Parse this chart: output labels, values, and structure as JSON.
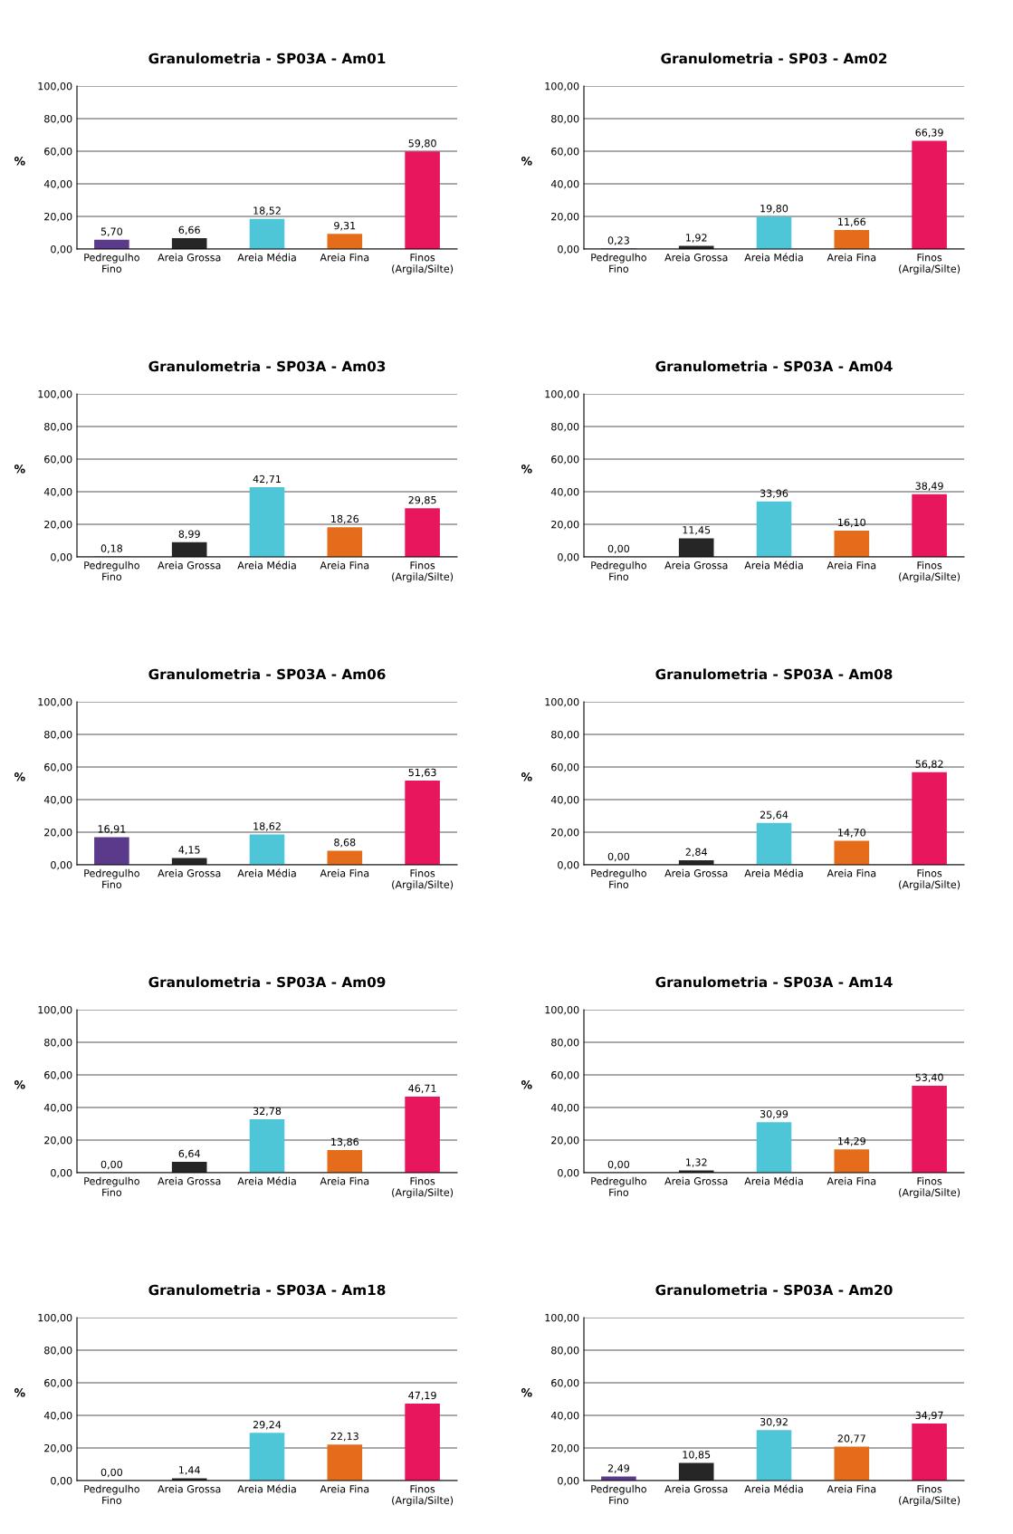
{
  "chart_data": [
    {
      "type": "bar",
      "title": "Granulometria - SP03A - Am01",
      "ylabel": "%",
      "categories": [
        "Pedregulho\nFino",
        "Areia Grossa",
        "Areia Média",
        "Areia Fina",
        "Finos\n(Argila/Silte)"
      ],
      "values": [
        5.7,
        6.66,
        18.52,
        9.31,
        59.8
      ],
      "value_labels": [
        "5,70",
        "6,66",
        "18,52",
        "9,31",
        "59,80"
      ],
      "colors": [
        "#5b3a8c",
        "#262626",
        "#4fc6d8",
        "#e46c1a",
        "#e8175d"
      ],
      "ylim": [
        0,
        100
      ],
      "yticks": [
        {
          "value": 0,
          "label": "0,00"
        },
        {
          "value": 20,
          "label": "20,00"
        },
        {
          "value": 40,
          "label": "40,00"
        },
        {
          "value": 60,
          "label": "60,00"
        },
        {
          "value": 80,
          "label": "80,00"
        },
        {
          "value": 100,
          "label": "100,00"
        }
      ],
      "grid": "y"
    },
    {
      "type": "bar",
      "title": "Granulometria - SP03 - Am02",
      "ylabel": "%",
      "categories": [
        "Pedregulho\nFino",
        "Areia Grossa",
        "Areia Média",
        "Areia Fina",
        "Finos\n(Argila/Silte)"
      ],
      "values": [
        0.23,
        1.92,
        19.8,
        11.66,
        66.39
      ],
      "value_labels": [
        "0,23",
        "1,92",
        "19,80",
        "11,66",
        "66,39"
      ],
      "colors": [
        "#5b3a8c",
        "#262626",
        "#4fc6d8",
        "#e46c1a",
        "#e8175d"
      ],
      "ylim": [
        0,
        100
      ],
      "yticks": [
        {
          "value": 0,
          "label": "0,00"
        },
        {
          "value": 20,
          "label": "20,00"
        },
        {
          "value": 40,
          "label": "40,00"
        },
        {
          "value": 60,
          "label": "60,00"
        },
        {
          "value": 80,
          "label": "80,00"
        },
        {
          "value": 100,
          "label": "100,00"
        }
      ],
      "grid": "y"
    },
    {
      "type": "bar",
      "title": "Granulometria - SP03A - Am03",
      "ylabel": "%",
      "categories": [
        "Pedregulho\nFino",
        "Areia Grossa",
        "Areia Média",
        "Areia Fina",
        "Finos\n(Argila/Silte)"
      ],
      "values": [
        0.18,
        8.99,
        42.71,
        18.26,
        29.85
      ],
      "value_labels": [
        "0,18",
        "8,99",
        "42,71",
        "18,26",
        "29,85"
      ],
      "colors": [
        "#5b3a8c",
        "#262626",
        "#4fc6d8",
        "#e46c1a",
        "#e8175d"
      ],
      "ylim": [
        0,
        100
      ],
      "yticks": [
        {
          "value": 0,
          "label": "0,00"
        },
        {
          "value": 20,
          "label": "20,00"
        },
        {
          "value": 40,
          "label": "40,00"
        },
        {
          "value": 60,
          "label": "60,00"
        },
        {
          "value": 80,
          "label": "80,00"
        },
        {
          "value": 100,
          "label": "100,00"
        }
      ],
      "grid": "y"
    },
    {
      "type": "bar",
      "title": "Granulometria - SP03A - Am04",
      "ylabel": "%",
      "categories": [
        "Pedregulho\nFino",
        "Areia Grossa",
        "Areia Média",
        "Areia Fina",
        "Finos\n(Argila/Silte)"
      ],
      "values": [
        0.0,
        11.45,
        33.96,
        16.1,
        38.49
      ],
      "value_labels": [
        "0,00",
        "11,45",
        "33,96",
        "16,10",
        "38,49"
      ],
      "colors": [
        "#5b3a8c",
        "#262626",
        "#4fc6d8",
        "#e46c1a",
        "#e8175d"
      ],
      "ylim": [
        0,
        100
      ],
      "yticks": [
        {
          "value": 0,
          "label": "0,00"
        },
        {
          "value": 20,
          "label": "20,00"
        },
        {
          "value": 40,
          "label": "40,00"
        },
        {
          "value": 60,
          "label": "60,00"
        },
        {
          "value": 80,
          "label": "80,00"
        },
        {
          "value": 100,
          "label": "100,00"
        }
      ],
      "grid": "y"
    },
    {
      "type": "bar",
      "title": "Granulometria - SP03A - Am06",
      "ylabel": "%",
      "categories": [
        "Pedregulho\nFino",
        "Areia Grossa",
        "Areia Média",
        "Areia Fina",
        "Finos\n(Argila/Silte)"
      ],
      "values": [
        16.91,
        4.15,
        18.62,
        8.68,
        51.63
      ],
      "value_labels": [
        "16,91",
        "4,15",
        "18,62",
        "8,68",
        "51,63"
      ],
      "colors": [
        "#5b3a8c",
        "#262626",
        "#4fc6d8",
        "#e46c1a",
        "#e8175d"
      ],
      "ylim": [
        0,
        100
      ],
      "yticks": [
        {
          "value": 0,
          "label": "0,00"
        },
        {
          "value": 20,
          "label": "20,00"
        },
        {
          "value": 40,
          "label": "40,00"
        },
        {
          "value": 60,
          "label": "60,00"
        },
        {
          "value": 80,
          "label": "80,00"
        },
        {
          "value": 100,
          "label": "100,00"
        }
      ],
      "grid": "y"
    },
    {
      "type": "bar",
      "title": "Granulometria - SP03A - Am08",
      "ylabel": "%",
      "categories": [
        "Pedregulho\nFino",
        "Areia Grossa",
        "Areia Média",
        "Areia Fina",
        "Finos\n(Argila/Silte)"
      ],
      "values": [
        0.0,
        2.84,
        25.64,
        14.7,
        56.82
      ],
      "value_labels": [
        "0,00",
        "2,84",
        "25,64",
        "14,70",
        "56,82"
      ],
      "colors": [
        "#5b3a8c",
        "#262626",
        "#4fc6d8",
        "#e46c1a",
        "#e8175d"
      ],
      "ylim": [
        0,
        100
      ],
      "yticks": [
        {
          "value": 0,
          "label": "0,00"
        },
        {
          "value": 20,
          "label": "20,00"
        },
        {
          "value": 40,
          "label": "40,00"
        },
        {
          "value": 60,
          "label": "60,00"
        },
        {
          "value": 80,
          "label": "80,00"
        },
        {
          "value": 100,
          "label": "100,00"
        }
      ],
      "grid": "y"
    },
    {
      "type": "bar",
      "title": "Granulometria - SP03A - Am09",
      "ylabel": "%",
      "categories": [
        "Pedregulho\nFino",
        "Areia Grossa",
        "Areia Média",
        "Areia Fina",
        "Finos\n(Argila/Silte)"
      ],
      "values": [
        0.0,
        6.64,
        32.78,
        13.86,
        46.71
      ],
      "value_labels": [
        "0,00",
        "6,64",
        "32,78",
        "13,86",
        "46,71"
      ],
      "colors": [
        "#5b3a8c",
        "#262626",
        "#4fc6d8",
        "#e46c1a",
        "#e8175d"
      ],
      "ylim": [
        0,
        100
      ],
      "yticks": [
        {
          "value": 0,
          "label": "0,00"
        },
        {
          "value": 20,
          "label": "20,00"
        },
        {
          "value": 40,
          "label": "40,00"
        },
        {
          "value": 60,
          "label": "60,00"
        },
        {
          "value": 80,
          "label": "80,00"
        },
        {
          "value": 100,
          "label": "100,00"
        }
      ],
      "grid": "y"
    },
    {
      "type": "bar",
      "title": "Granulometria - SP03A - Am14",
      "ylabel": "%",
      "categories": [
        "Pedregulho\nFino",
        "Areia Grossa",
        "Areia Média",
        "Areia Fina",
        "Finos\n(Argila/Silte)"
      ],
      "values": [
        0.0,
        1.32,
        30.99,
        14.29,
        53.4
      ],
      "value_labels": [
        "0,00",
        "1,32",
        "30,99",
        "14,29",
        "53,40"
      ],
      "colors": [
        "#5b3a8c",
        "#262626",
        "#4fc6d8",
        "#e46c1a",
        "#e8175d"
      ],
      "ylim": [
        0,
        100
      ],
      "yticks": [
        {
          "value": 0,
          "label": "0,00"
        },
        {
          "value": 20,
          "label": "20,00"
        },
        {
          "value": 40,
          "label": "40,00"
        },
        {
          "value": 60,
          "label": "60,00"
        },
        {
          "value": 80,
          "label": "80,00"
        },
        {
          "value": 100,
          "label": "100,00"
        }
      ],
      "grid": "y"
    },
    {
      "type": "bar",
      "title": "Granulometria - SP03A - Am18",
      "ylabel": "%",
      "categories": [
        "Pedregulho\nFino",
        "Areia Grossa",
        "Areia Média",
        "Areia Fina",
        "Finos\n(Argila/Silte)"
      ],
      "values": [
        0.0,
        1.44,
        29.24,
        22.13,
        47.19
      ],
      "value_labels": [
        "0,00",
        "1,44",
        "29,24",
        "22,13",
        "47,19"
      ],
      "colors": [
        "#5b3a8c",
        "#262626",
        "#4fc6d8",
        "#e46c1a",
        "#e8175d"
      ],
      "ylim": [
        0,
        100
      ],
      "yticks": [
        {
          "value": 0,
          "label": "0,00"
        },
        {
          "value": 20,
          "label": "20,00"
        },
        {
          "value": 40,
          "label": "40,00"
        },
        {
          "value": 60,
          "label": "60,00"
        },
        {
          "value": 80,
          "label": "80,00"
        },
        {
          "value": 100,
          "label": "100,00"
        }
      ],
      "grid": "y"
    },
    {
      "type": "bar",
      "title": "Granulometria - SP03A - Am20",
      "ylabel": "%",
      "categories": [
        "Pedregulho\nFino",
        "Areia Grossa",
        "Areia Média",
        "Areia Fina",
        "Finos\n(Argila/Silte)"
      ],
      "values": [
        2.49,
        10.85,
        30.92,
        20.77,
        34.97
      ],
      "value_labels": [
        "2,49",
        "10,85",
        "30,92",
        "20,77",
        "34,97"
      ],
      "colors": [
        "#5b3a8c",
        "#262626",
        "#4fc6d8",
        "#e46c1a",
        "#e8175d"
      ],
      "ylim": [
        0,
        100
      ],
      "yticks": [
        {
          "value": 0,
          "label": "0,00"
        },
        {
          "value": 20,
          "label": "20,00"
        },
        {
          "value": 40,
          "label": "40,00"
        },
        {
          "value": 60,
          "label": "60,00"
        },
        {
          "value": 80,
          "label": "80,00"
        },
        {
          "value": 100,
          "label": "100,00"
        }
      ],
      "grid": "y"
    }
  ]
}
